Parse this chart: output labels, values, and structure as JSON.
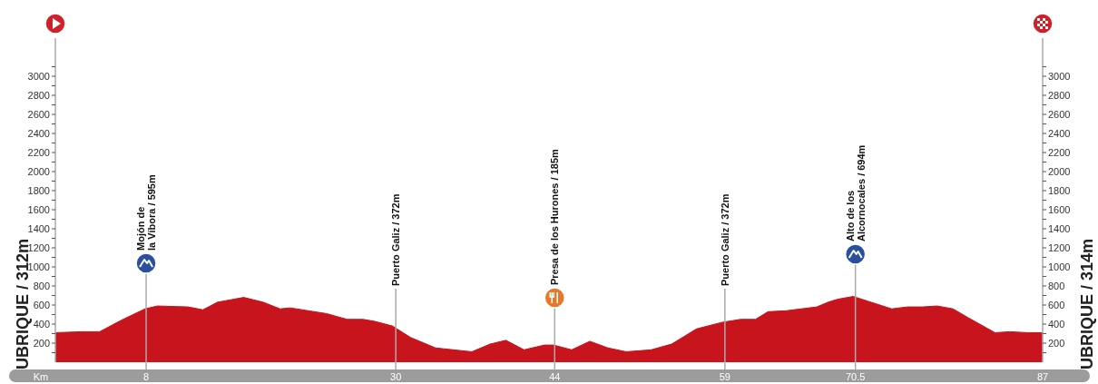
{
  "chart_data": {
    "type": "area",
    "xlabel": "Km",
    "ylabel": "UBRIQUE / 312m",
    "y2label": "UBRIQUE / 314m",
    "x": [
      0,
      2.3,
      3.9,
      5.8,
      7.9,
      9,
      11.7,
      13,
      14.3,
      16.6,
      18.3,
      19.8,
      20.7,
      23.9,
      25.7,
      27.1,
      28.1,
      29.7,
      31.3,
      33.5,
      35.1,
      36.7,
      38.3,
      39.7,
      41.3,
      43.1,
      43.9,
      45.5,
      47.1,
      48.7,
      50.3,
      52.5,
      54.3,
      56.5,
      58.8,
      60.4,
      61.7,
      62.8,
      64.4,
      67.1,
      68.1,
      68.9,
      70.3,
      71.6,
      73.7,
      75.1,
      76.4,
      77.7,
      79.1,
      80.4,
      82.8,
      84.1,
      85.7,
      87
    ],
    "values": [
      310,
      320,
      320,
      440,
      560,
      590,
      580,
      550,
      630,
      680,
      630,
      560,
      570,
      510,
      450,
      450,
      430,
      380,
      260,
      150,
      130,
      110,
      190,
      230,
      130,
      180,
      180,
      130,
      220,
      150,
      110,
      130,
      190,
      350,
      420,
      450,
      450,
      530,
      540,
      580,
      630,
      660,
      690,
      640,
      560,
      580,
      580,
      590,
      560,
      470,
      310,
      320,
      310,
      310
    ],
    "color": "#c8141c",
    "xlim": [
      0,
      87
    ],
    "xticks": [
      8,
      30,
      44,
      59,
      70.5,
      87
    ],
    "ylim": [
      0,
      3400
    ],
    "yticks": [
      {
        "value": 100,
        "label": null
      },
      200,
      {
        "value": 300,
        "label": null
      },
      400,
      {
        "value": 500,
        "label": null
      },
      600,
      {
        "value": 700,
        "label": null
      },
      800,
      {
        "value": 900,
        "label": null
      },
      1000,
      {
        "value": 1100,
        "label": null
      },
      1200,
      {
        "value": 1300,
        "label": null
      },
      1400,
      {
        "value": 1500,
        "label": null
      },
      1600,
      {
        "value": 1700,
        "label": null
      },
      1800,
      {
        "value": 1900,
        "label": null
      },
      2000,
      {
        "value": 2100,
        "label": null
      },
      2200,
      {
        "value": 2300,
        "label": null
      },
      2400,
      {
        "value": 2500,
        "label": null
      },
      2600,
      {
        "value": 2700,
        "label": null
      },
      2800,
      {
        "value": 2900,
        "label": null
      },
      3000,
      {
        "value": 3100,
        "label": null
      }
    ],
    "y2lim": [
      0,
      3400
    ],
    "y2ticks": [
      {
        "value": 100,
        "label": null
      },
      200,
      {
        "value": 300,
        "label": null
      },
      400,
      {
        "value": 500,
        "label": null
      },
      600,
      {
        "value": 700,
        "label": null
      },
      800,
      {
        "value": 900,
        "label": null
      },
      1000,
      {
        "value": 1100,
        "label": null
      },
      1200,
      {
        "value": 1300,
        "label": null
      },
      1400,
      {
        "value": 1500,
        "label": null
      },
      1600,
      {
        "value": 1700,
        "label": null
      },
      1800,
      {
        "value": 1900,
        "label": null
      },
      2000,
      {
        "value": 2100,
        "label": null
      },
      2200,
      {
        "value": 2300,
        "label": null
      },
      2400,
      {
        "value": 2500,
        "label": null
      },
      2600,
      {
        "value": 2700,
        "label": null
      },
      2800,
      {
        "value": 2900,
        "label": null
      },
      3000,
      {
        "value": 3100,
        "label": null
      }
    ],
    "ref_lines": [
      {
        "axis": "x",
        "value": 8,
        "label": "Mojón de\nla Víbora / 595m",
        "color": "#aaaaaa"
      },
      {
        "axis": "x",
        "value": 30,
        "label": "Puerto Galiz / 372m",
        "color": "#aaaaaa"
      },
      {
        "axis": "x",
        "value": 44,
        "label": "Presa de los Hurones / 185m",
        "color": "#aaaaaa"
      },
      {
        "axis": "x",
        "value": 59,
        "label": "Puerto Galiz / 372m",
        "color": "#aaaaaa"
      },
      {
        "axis": "x",
        "value": 70.5,
        "label": "Alto de los\nAlcornocales / 694m",
        "color": "#aaaaaa"
      }
    ],
    "grid": false,
    "legend": false
  }
}
